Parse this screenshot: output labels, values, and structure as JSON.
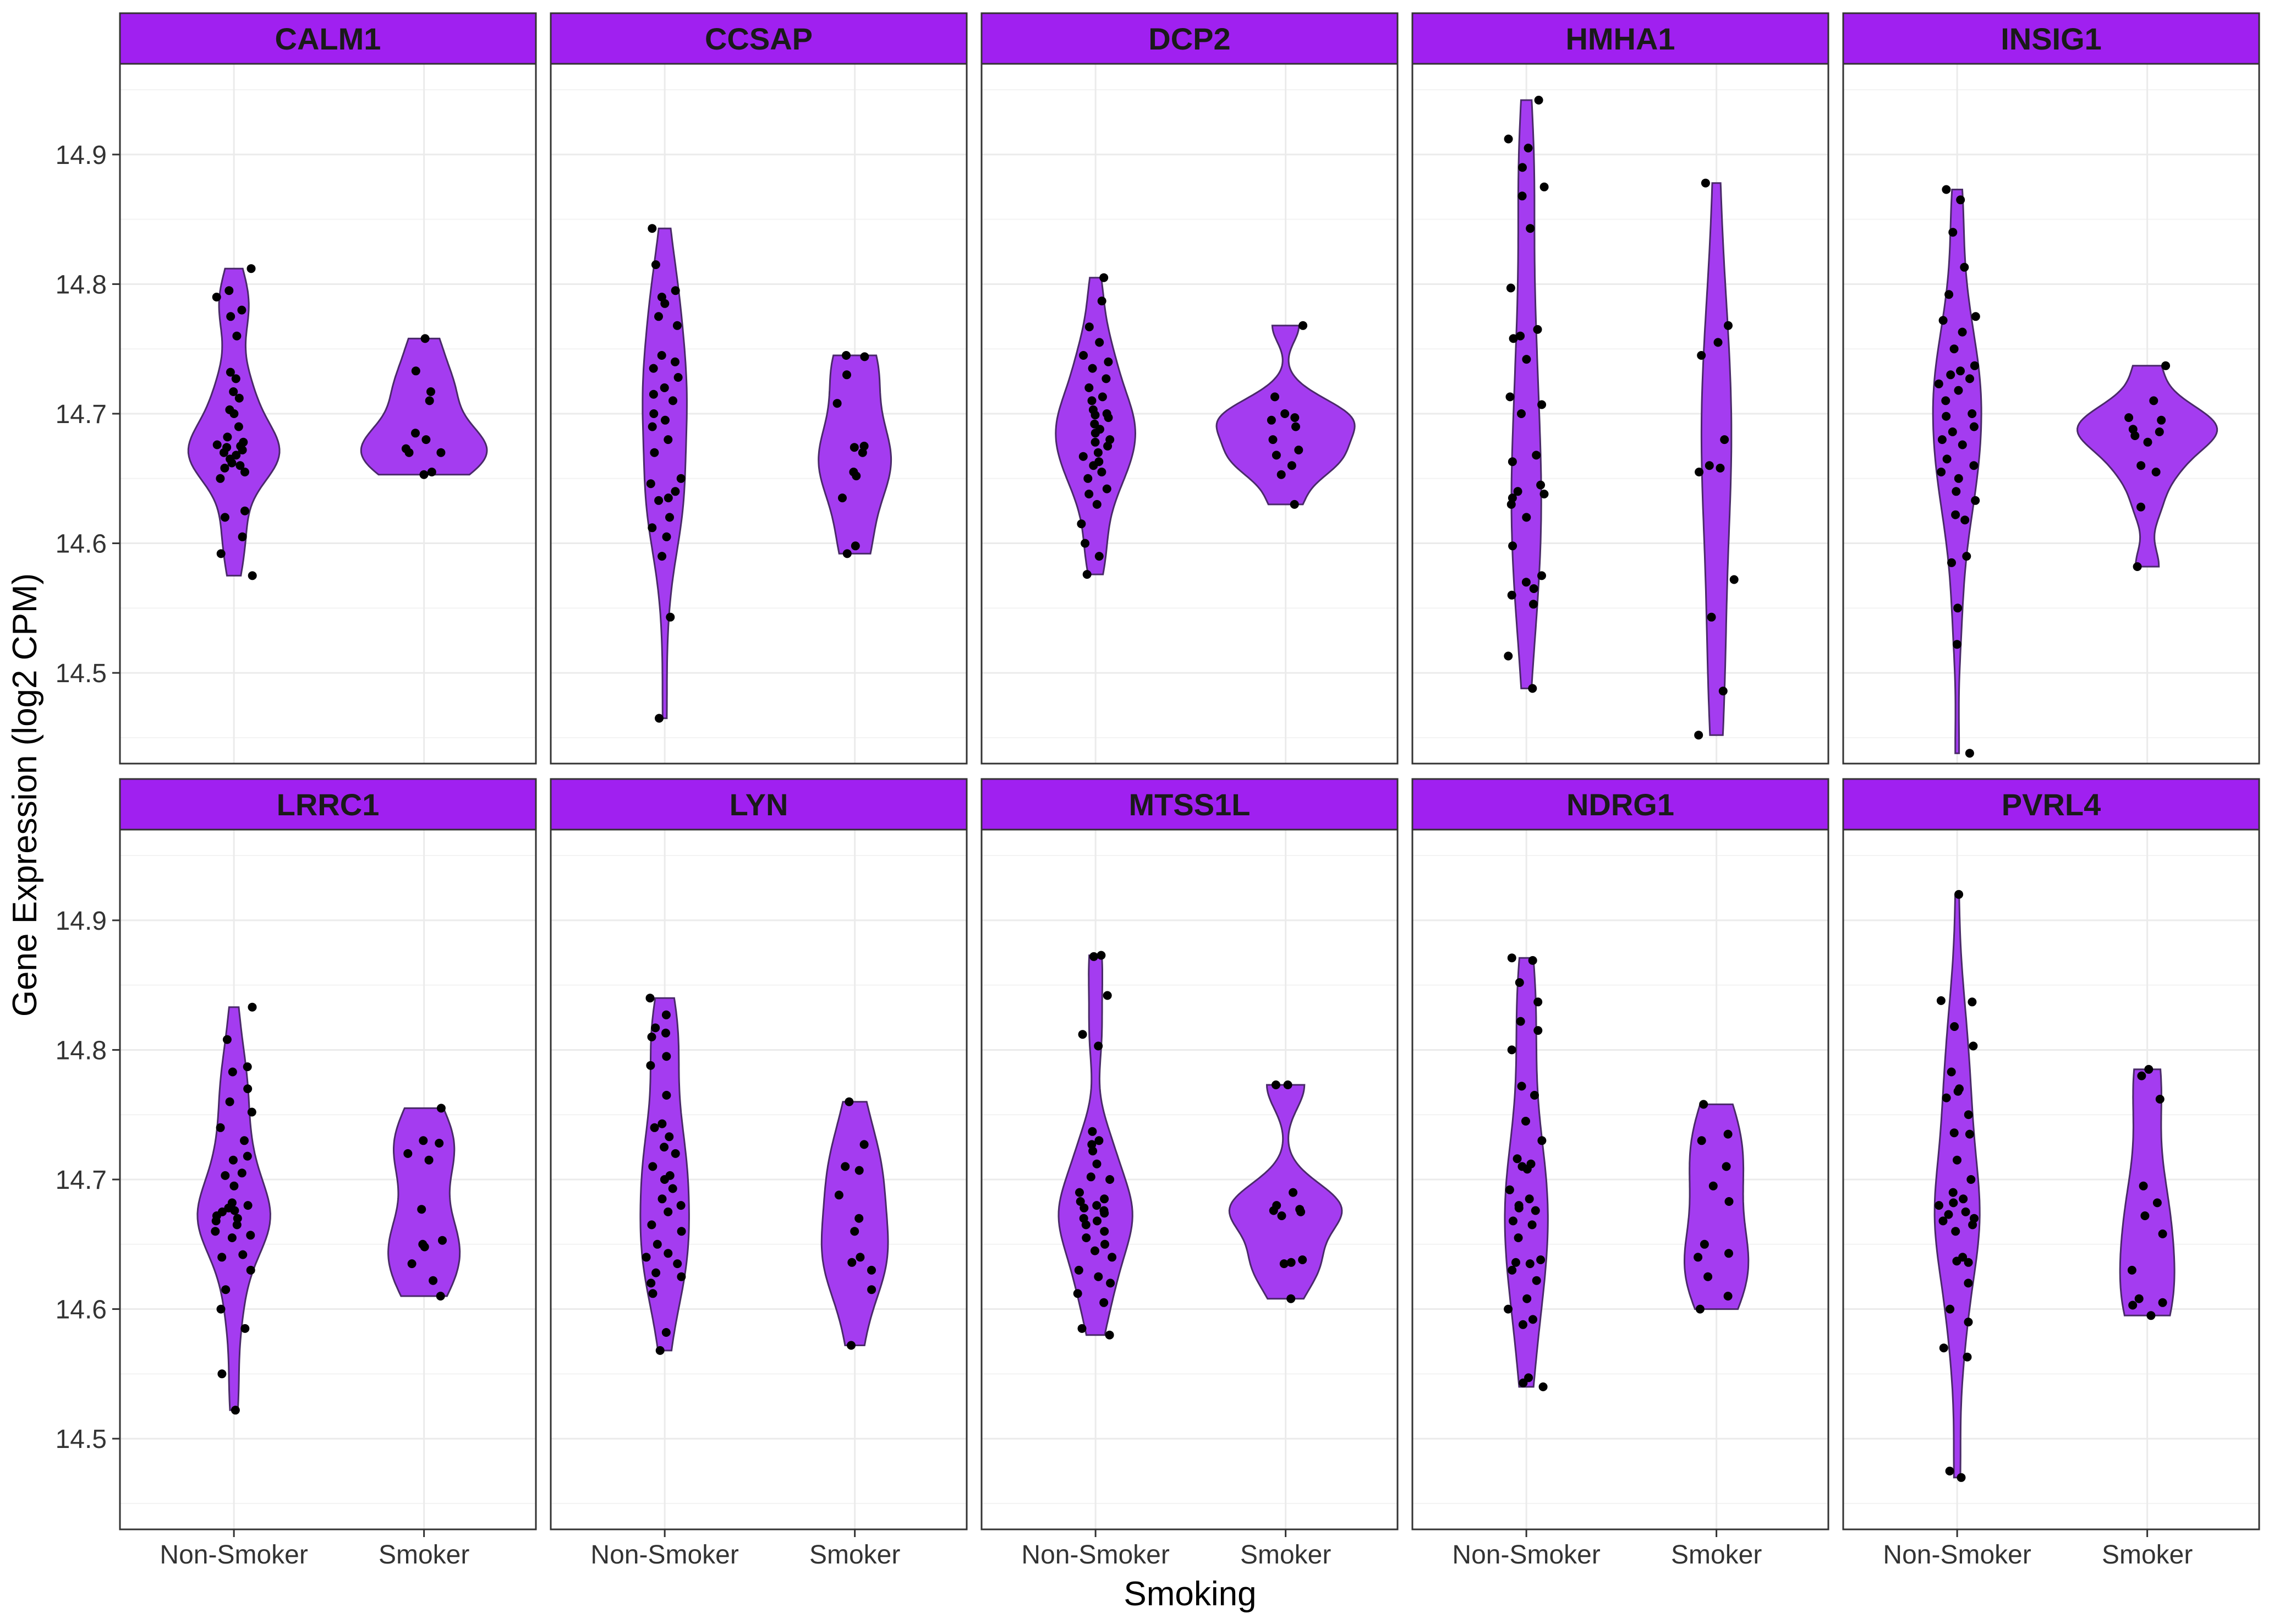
{
  "chart_data": {
    "type": "violin",
    "xlabel": "Smoking",
    "ylabel": "Gene Expression (log2 CPM)",
    "categories": [
      "Non-Smoker",
      "Smoker"
    ],
    "ylim": [
      14.43,
      14.97
    ],
    "y_ticks": [
      "14.5",
      "14.6",
      "14.7",
      "14.8",
      "14.9"
    ],
    "grid": true,
    "layout": "facet grid, 2 rows x 5 columns, shared y axis",
    "colors": {
      "fill": "#a43cf0",
      "outline": "#4a2a6a",
      "strip": "#a020f0",
      "point": "#000000"
    },
    "facets": [
      {
        "gene": "CALM1",
        "non_smoker": [
          14.812,
          14.795,
          14.79,
          14.78,
          14.775,
          14.76,
          14.732,
          14.727,
          14.717,
          14.712,
          14.703,
          14.7,
          14.69,
          14.682,
          14.678,
          14.676,
          14.675,
          14.674,
          14.672,
          14.67,
          14.668,
          14.665,
          14.662,
          14.66,
          14.658,
          14.655,
          14.65,
          14.625,
          14.62,
          14.605,
          14.592,
          14.575
        ],
        "smoker": [
          14.758,
          14.733,
          14.717,
          14.71,
          14.685,
          14.68,
          14.673,
          14.67,
          14.67,
          14.655,
          14.653
        ]
      },
      {
        "gene": "CCSAP",
        "non_smoker": [
          14.843,
          14.815,
          14.795,
          14.79,
          14.785,
          14.775,
          14.768,
          14.745,
          14.74,
          14.735,
          14.728,
          14.72,
          14.715,
          14.71,
          14.7,
          14.695,
          14.69,
          14.68,
          14.67,
          14.65,
          14.646,
          14.64,
          14.635,
          14.633,
          14.62,
          14.612,
          14.605,
          14.59,
          14.543,
          14.465
        ],
        "smoker": [
          14.745,
          14.744,
          14.73,
          14.708,
          14.675,
          14.674,
          14.67,
          14.655,
          14.652,
          14.635,
          14.598,
          14.592
        ]
      },
      {
        "gene": "DCP2",
        "non_smoker": [
          14.805,
          14.787,
          14.767,
          14.755,
          14.745,
          14.74,
          14.735,
          14.727,
          14.72,
          14.713,
          14.71,
          14.703,
          14.7,
          14.699,
          14.697,
          14.692,
          14.688,
          14.685,
          14.68,
          14.678,
          14.675,
          14.67,
          14.667,
          14.663,
          14.66,
          14.655,
          14.65,
          14.642,
          14.638,
          14.63,
          14.615,
          14.6,
          14.59,
          14.576
        ],
        "smoker": [
          14.768,
          14.713,
          14.7,
          14.697,
          14.695,
          14.69,
          14.68,
          14.672,
          14.668,
          14.66,
          14.653,
          14.63
        ]
      },
      {
        "gene": "HMHA1",
        "non_smoker": [
          14.942,
          14.912,
          14.905,
          14.89,
          14.875,
          14.868,
          14.843,
          14.797,
          14.765,
          14.76,
          14.758,
          14.742,
          14.713,
          14.707,
          14.7,
          14.668,
          14.663,
          14.645,
          14.64,
          14.638,
          14.635,
          14.63,
          14.62,
          14.598,
          14.575,
          14.57,
          14.565,
          14.56,
          14.553,
          14.513,
          14.488
        ],
        "smoker": [
          14.878,
          14.768,
          14.755,
          14.745,
          14.68,
          14.66,
          14.658,
          14.655,
          14.572,
          14.543,
          14.486,
          14.452
        ]
      },
      {
        "gene": "INSIG1",
        "non_smoker": [
          14.873,
          14.865,
          14.84,
          14.813,
          14.792,
          14.775,
          14.772,
          14.763,
          14.75,
          14.737,
          14.733,
          14.73,
          14.727,
          14.723,
          14.718,
          14.71,
          14.7,
          14.698,
          14.69,
          14.686,
          14.68,
          14.676,
          14.665,
          14.66,
          14.655,
          14.65,
          14.64,
          14.633,
          14.622,
          14.618,
          14.59,
          14.585,
          14.55,
          14.522,
          14.438
        ],
        "smoker": [
          14.737,
          14.71,
          14.697,
          14.695,
          14.688,
          14.686,
          14.683,
          14.678,
          14.66,
          14.655,
          14.628,
          14.582
        ]
      },
      {
        "gene": "LRRC1",
        "non_smoker": [
          14.833,
          14.808,
          14.787,
          14.783,
          14.77,
          14.76,
          14.752,
          14.74,
          14.73,
          14.718,
          14.715,
          14.705,
          14.703,
          14.695,
          14.682,
          14.68,
          14.678,
          14.676,
          14.675,
          14.672,
          14.67,
          14.668,
          14.665,
          14.66,
          14.657,
          14.655,
          14.642,
          14.64,
          14.63,
          14.615,
          14.6,
          14.585,
          14.55,
          14.522
        ],
        "smoker": [
          14.755,
          14.73,
          14.728,
          14.72,
          14.715,
          14.677,
          14.653,
          14.65,
          14.648,
          14.635,
          14.622,
          14.61
        ]
      },
      {
        "gene": "LYN",
        "non_smoker": [
          14.84,
          14.827,
          14.817,
          14.813,
          14.81,
          14.795,
          14.788,
          14.765,
          14.743,
          14.74,
          14.733,
          14.725,
          14.72,
          14.71,
          14.703,
          14.7,
          14.693,
          14.685,
          14.68,
          14.675,
          14.665,
          14.66,
          14.65,
          14.643,
          14.64,
          14.635,
          14.628,
          14.625,
          14.62,
          14.612,
          14.582,
          14.568
        ],
        "smoker": [
          14.76,
          14.727,
          14.71,
          14.707,
          14.688,
          14.67,
          14.66,
          14.64,
          14.636,
          14.63,
          14.615,
          14.572
        ]
      },
      {
        "gene": "MTSS1L",
        "non_smoker": [
          14.873,
          14.872,
          14.842,
          14.812,
          14.803,
          14.737,
          14.73,
          14.727,
          14.722,
          14.712,
          14.702,
          14.7,
          14.69,
          14.685,
          14.683,
          14.68,
          14.678,
          14.676,
          14.674,
          14.67,
          14.668,
          14.665,
          14.66,
          14.655,
          14.65,
          14.645,
          14.64,
          14.63,
          14.625,
          14.62,
          14.612,
          14.605,
          14.585,
          14.58
        ],
        "smoker": [
          14.773,
          14.773,
          14.69,
          14.68,
          14.677,
          14.676,
          14.675,
          14.672,
          14.638,
          14.636,
          14.635,
          14.608
        ]
      },
      {
        "gene": "NDRG1",
        "non_smoker": [
          14.871,
          14.869,
          14.852,
          14.837,
          14.822,
          14.815,
          14.8,
          14.772,
          14.765,
          14.745,
          14.73,
          14.716,
          14.712,
          14.71,
          14.708,
          14.692,
          14.685,
          14.68,
          14.678,
          14.676,
          14.668,
          14.665,
          14.655,
          14.638,
          14.636,
          14.635,
          14.63,
          14.622,
          14.608,
          14.6,
          14.592,
          14.588,
          14.547,
          14.543,
          14.54
        ],
        "smoker": [
          14.758,
          14.735,
          14.73,
          14.71,
          14.695,
          14.683,
          14.65,
          14.643,
          14.64,
          14.625,
          14.61,
          14.6
        ]
      },
      {
        "gene": "PVRL4",
        "non_smoker": [
          14.92,
          14.838,
          14.837,
          14.818,
          14.803,
          14.783,
          14.77,
          14.768,
          14.763,
          14.75,
          14.736,
          14.735,
          14.715,
          14.7,
          14.69,
          14.685,
          14.682,
          14.68,
          14.675,
          14.673,
          14.67,
          14.668,
          14.665,
          14.66,
          14.64,
          14.637,
          14.636,
          14.62,
          14.6,
          14.59,
          14.57,
          14.563,
          14.475,
          14.47
        ],
        "smoker": [
          14.785,
          14.78,
          14.762,
          14.695,
          14.682,
          14.672,
          14.658,
          14.63,
          14.608,
          14.605,
          14.603,
          14.595
        ]
      }
    ]
  }
}
